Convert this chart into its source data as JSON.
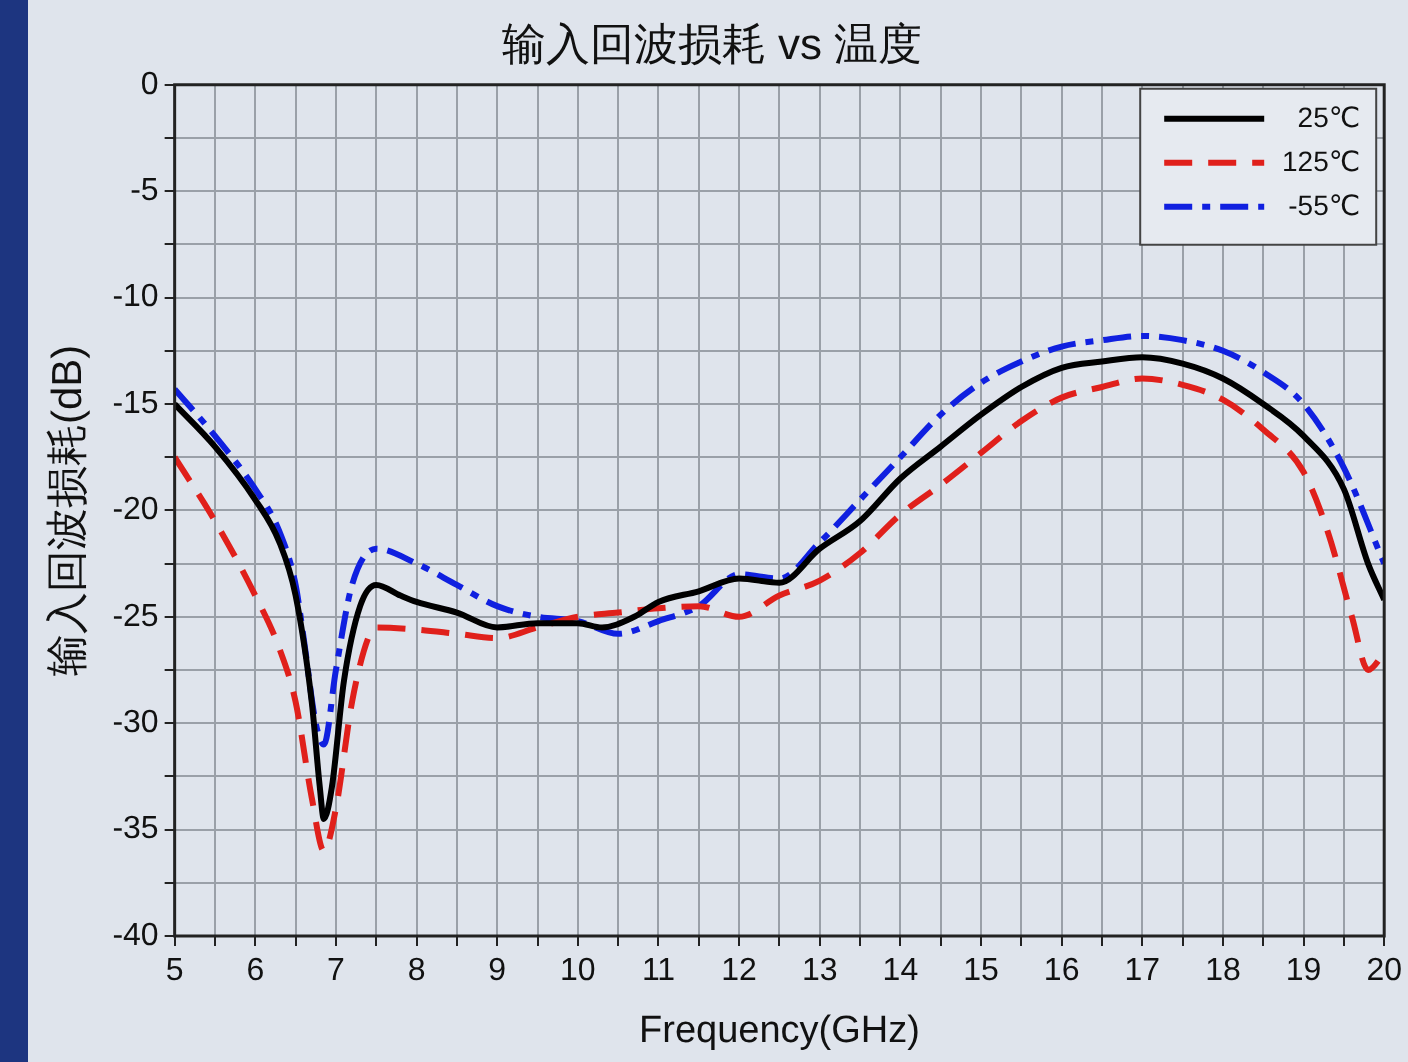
{
  "chart_data": {
    "type": "line",
    "title": "输入回波损耗 vs 温度",
    "xlabel": "Frequency(GHz)",
    "ylabel": "输入回波损耗(dB)",
    "xlim": [
      5,
      20
    ],
    "xticks": [
      5,
      {
        "value": 5.5,
        "label": null
      },
      6,
      {
        "value": 6.5,
        "label": null
      },
      7,
      {
        "value": 7.5,
        "label": null
      },
      8,
      {
        "value": 8.5,
        "label": null
      },
      9,
      {
        "value": 9.5,
        "label": null
      },
      10,
      {
        "value": 10.5,
        "label": null
      },
      11,
      {
        "value": 11.5,
        "label": null
      },
      12,
      {
        "value": 12.5,
        "label": null
      },
      13,
      {
        "value": 13.5,
        "label": null
      },
      14,
      {
        "value": 14.5,
        "label": null
      },
      15,
      {
        "value": 15.5,
        "label": null
      },
      16,
      {
        "value": 16.5,
        "label": null
      },
      17,
      {
        "value": 17.5,
        "label": null
      },
      18,
      {
        "value": 18.5,
        "label": null
      },
      19,
      {
        "value": 19.5,
        "label": null
      },
      20
    ],
    "ylim": [
      -40,
      0
    ],
    "yticks": [
      -40,
      {
        "value": -37.5,
        "label": null
      },
      -35,
      {
        "value": -32.5,
        "label": null
      },
      -30,
      {
        "value": -27.5,
        "label": null
      },
      -25,
      {
        "value": -22.5,
        "label": null
      },
      -20,
      {
        "value": -17.5,
        "label": null
      },
      -15,
      {
        "value": -12.5,
        "label": null
      },
      -10,
      {
        "value": -7.5,
        "label": null
      },
      -5,
      {
        "value": -2.5,
        "label": null
      },
      0
    ],
    "grid": true,
    "legend": "top right",
    "marker": "none",
    "series": [
      {
        "name": "25℃",
        "color": "#000000",
        "line_style": "solid",
        "x": [
          5,
          5.5,
          6,
          6.3,
          6.5,
          6.7,
          6.8,
          6.85,
          6.95,
          7.1,
          7.3,
          7.5,
          7.8,
          8,
          8.5,
          9,
          9.5,
          10,
          10.3,
          10.7,
          11,
          11.5,
          12,
          12.5,
          13,
          13.5,
          14,
          14.5,
          15,
          15.5,
          16,
          16.5,
          17,
          17.5,
          18,
          18.5,
          19,
          19.5,
          19.8,
          20
        ],
        "values": [
          -15,
          -17,
          -19.5,
          -21.5,
          -24,
          -29,
          -33,
          -34.5,
          -33,
          -28,
          -24.5,
          -23.5,
          -24,
          -24.3,
          -24.8,
          -25.5,
          -25.3,
          -25.3,
          -25.5,
          -25,
          -24.3,
          -23.8,
          -23.2,
          -23.4,
          -21.8,
          -20.5,
          -18.5,
          -17,
          -15.5,
          -14.2,
          -13.3,
          -13,
          -12.8,
          -13.1,
          -13.8,
          -15,
          -16.5,
          -19,
          -22.5,
          -24.2
        ]
      },
      {
        "name": "125℃",
        "color": "#e0201b",
        "line_style": "dashed",
        "x": [
          5,
          5.5,
          6,
          6.3,
          6.5,
          6.7,
          6.85,
          7,
          7.2,
          7.4,
          7.5,
          8,
          8.5,
          9,
          9.5,
          10,
          10.5,
          11,
          11.5,
          12,
          12.5,
          13,
          13.5,
          14,
          14.5,
          15,
          15.5,
          16,
          16.5,
          17,
          17.5,
          18,
          18.5,
          19,
          19.3,
          19.6,
          19.8,
          20
        ],
        "values": [
          -17.5,
          -20.5,
          -24,
          -26.5,
          -29,
          -33.5,
          -36,
          -34,
          -29,
          -26,
          -25.5,
          -25.6,
          -25.8,
          -26,
          -25.5,
          -25,
          -24.8,
          -24.6,
          -24.5,
          -25,
          -24,
          -23.3,
          -22,
          -20.2,
          -18.8,
          -17.3,
          -15.8,
          -14.7,
          -14.2,
          -13.8,
          -14.1,
          -14.8,
          -16.2,
          -18.2,
          -21,
          -25,
          -27.5,
          -26.7
        ]
      },
      {
        "name": "-55℃",
        "color": "#1020e0",
        "line_style": "dotted",
        "x": [
          5,
          5.5,
          6,
          6.3,
          6.5,
          6.6,
          6.75,
          6.85,
          7,
          7.2,
          7.5,
          8,
          8.5,
          9,
          9.5,
          10,
          10.5,
          11,
          11.5,
          12,
          12.5,
          13,
          13.5,
          14,
          14.5,
          15,
          15.5,
          16,
          16.5,
          17,
          17.5,
          18,
          18.5,
          19,
          19.5,
          20
        ],
        "values": [
          -14.3,
          -16.5,
          -19,
          -21,
          -23.5,
          -26,
          -30,
          -31,
          -27.5,
          -23.5,
          -21.8,
          -22.5,
          -23.5,
          -24.5,
          -25,
          -25.2,
          -25.8,
          -25.2,
          -24.5,
          -23,
          -23.2,
          -21.5,
          -19.5,
          -17.5,
          -15.5,
          -14,
          -13,
          -12.3,
          -12,
          -11.8,
          -12,
          -12.5,
          -13.5,
          -15,
          -18,
          -22.5
        ]
      }
    ]
  }
}
